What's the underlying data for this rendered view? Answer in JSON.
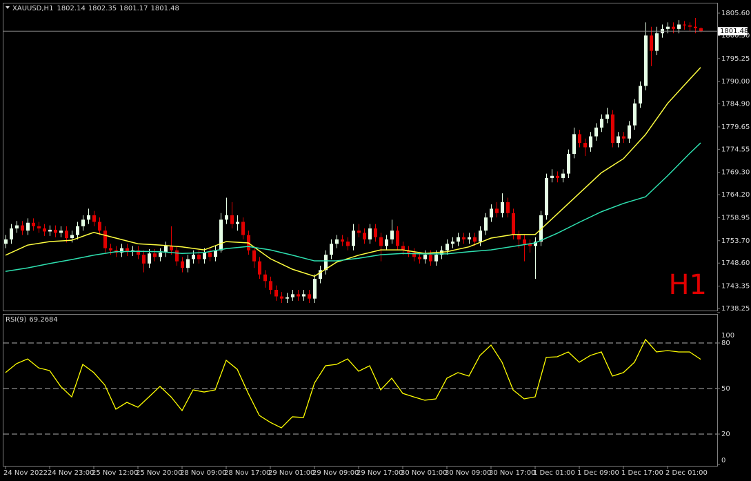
{
  "chart_data": [
    {
      "type": "candlestick",
      "title": "XAUUSD,H1",
      "annotation": "H1",
      "up_color": "#e6ffe6",
      "down_color": "#e00000",
      "categories": [
        "24 Nov 2022",
        null,
        null,
        null,
        null,
        null,
        null,
        null,
        "24 Nov 23:00",
        null,
        null,
        null,
        null,
        null,
        null,
        null,
        "25 Nov 12:00",
        null,
        null,
        null,
        null,
        null,
        null,
        null,
        "25 Nov 20:00",
        null,
        null,
        null,
        null,
        null,
        null,
        null,
        "28 Nov 09:00",
        null,
        null,
        null,
        null,
        null,
        null,
        null,
        "28 Nov 17:00",
        null,
        null,
        null,
        null,
        null,
        null,
        null,
        "29 Nov 01:00",
        null,
        null,
        null,
        null,
        null,
        null,
        null,
        "29 Nov 09:00",
        null,
        null,
        null,
        null,
        null,
        null,
        null,
        "29 Nov 17:00",
        null,
        null,
        null,
        null,
        null,
        null,
        null,
        "30 Nov 01:00",
        null,
        null,
        null,
        null,
        null,
        null,
        null,
        "30 Nov 09:00",
        null,
        null,
        null,
        null,
        null,
        null,
        null,
        "30 Nov 17:00",
        null,
        null,
        null,
        null,
        null,
        null,
        null,
        "1 Dec 01:00",
        null,
        null,
        null,
        null,
        null,
        null,
        null,
        "1 Dec 09:00",
        null,
        null,
        null,
        null,
        null,
        null,
        null,
        "1 Dec 17:00",
        null,
        null,
        null,
        null,
        null,
        null,
        null,
        "2 Dec 01:00",
        null,
        null,
        null,
        null,
        null,
        null
      ],
      "open": [
        1753.0,
        1754.0,
        1756.5,
        1757.2,
        1756.0,
        1757.8,
        1757.0,
        1756.5,
        1755.8,
        1756.2,
        1755.5,
        1756.0,
        1754.3,
        1755.0,
        1757.0,
        1758.5,
        1759.5,
        1758.0,
        1756.0,
        1752.0,
        1751.5,
        1751.0,
        1752.0,
        1751.2,
        1751.5,
        1750.5,
        1748.5,
        1750.8,
        1750.0,
        1751.0,
        1752.5,
        1751.5,
        1749.0,
        1747.5,
        1749.5,
        1750.5,
        1749.5,
        1751.0,
        1750.0,
        1751.5,
        1758.5,
        1759.5,
        1757.5,
        1758.0,
        1755.0,
        1751.5,
        1749.0,
        1746.0,
        1744.5,
        1742.5,
        1741.0,
        1740.5,
        1740.8,
        1741.5,
        1741.0,
        1741.5,
        1740.5,
        1745.0,
        1747.0,
        1750.5,
        1753.0,
        1754.0,
        1753.5,
        1752.5,
        1756.0,
        1755.5,
        1754.0,
        1756.5,
        1754.5,
        1752.5,
        1754.0,
        1756.0,
        1752.5,
        1751.5,
        1751.0,
        1750.0,
        1749.5,
        1750.5,
        1749.0,
        1750.5,
        1751.5,
        1753.0,
        1753.5,
        1754.5,
        1754.0,
        1754.5,
        1753.5,
        1756.0,
        1759.0,
        1761.0,
        1760.0,
        1762.5,
        1760.0,
        1755.0,
        1754.0,
        1753.0,
        1752.5,
        1753.5,
        1759.5,
        1768.0,
        1768.5,
        1768.0,
        1769.0,
        1773.5,
        1778.0,
        1776.0,
        1775.0,
        1777.5,
        1779.5,
        1781.5,
        1782.5,
        1776.0,
        1777.5,
        1777.0,
        1780.0,
        1785.0,
        1789.0,
        1800.5,
        1797.0,
        1801.0,
        1802.0,
        1802.5,
        1802.0,
        1803.0,
        1802.8,
        1802.5,
        1802.14
      ],
      "high": [
        1755.0,
        1757.5,
        1758.2,
        1758.2,
        1758.8,
        1758.8,
        1758.0,
        1757.5,
        1757.2,
        1757.2,
        1757.0,
        1757.0,
        1756.0,
        1758.0,
        1759.5,
        1761.0,
        1760.5,
        1759.0,
        1757.0,
        1753.0,
        1752.5,
        1753.0,
        1753.0,
        1752.5,
        1752.5,
        1751.5,
        1751.8,
        1751.8,
        1752.0,
        1753.5,
        1757.0,
        1752.5,
        1750.0,
        1750.5,
        1751.5,
        1751.5,
        1752.0,
        1752.0,
        1752.5,
        1760.0,
        1763.5,
        1762.5,
        1759.5,
        1759.0,
        1756.0,
        1752.5,
        1750.0,
        1747.0,
        1745.5,
        1743.5,
        1742.0,
        1741.8,
        1742.5,
        1742.5,
        1742.5,
        1742.5,
        1746.0,
        1748.0,
        1751.5,
        1754.0,
        1755.0,
        1755.0,
        1754.5,
        1757.5,
        1757.5,
        1756.5,
        1757.5,
        1757.5,
        1755.5,
        1755.0,
        1758.5,
        1757.0,
        1753.5,
        1752.5,
        1752.0,
        1751.0,
        1751.5,
        1751.5,
        1751.5,
        1752.5,
        1754.0,
        1754.5,
        1755.5,
        1755.5,
        1755.5,
        1755.5,
        1757.0,
        1760.0,
        1762.0,
        1762.5,
        1764.5,
        1763.5,
        1761.0,
        1756.0,
        1755.0,
        1754.0,
        1754.5,
        1760.5,
        1769.0,
        1770.0,
        1769.5,
        1770.0,
        1774.5,
        1779.5,
        1779.0,
        1777.0,
        1778.5,
        1780.5,
        1782.5,
        1784.0,
        1783.5,
        1778.5,
        1778.5,
        1781.0,
        1786.0,
        1790.0,
        1803.5,
        1802.5,
        1802.5,
        1803.0,
        1803.5,
        1803.5,
        1804.0,
        1803.8,
        1803.5,
        1804.5,
        1802.35
      ],
      "low": [
        1752.0,
        1753.0,
        1755.5,
        1755.0,
        1755.0,
        1756.0,
        1755.5,
        1754.8,
        1754.8,
        1754.5,
        1754.5,
        1753.3,
        1753.3,
        1754.0,
        1756.0,
        1757.5,
        1757.0,
        1755.0,
        1751.0,
        1750.5,
        1750.0,
        1750.0,
        1750.2,
        1750.2,
        1749.5,
        1746.5,
        1747.5,
        1749.0,
        1749.0,
        1750.0,
        1750.5,
        1748.0,
        1746.5,
        1746.5,
        1748.5,
        1748.5,
        1748.5,
        1749.0,
        1749.0,
        1751.0,
        1757.5,
        1756.5,
        1756.0,
        1754.0,
        1750.5,
        1747.5,
        1745.0,
        1743.0,
        1741.5,
        1740.0,
        1739.5,
        1739.5,
        1740.0,
        1740.0,
        1740.0,
        1739.5,
        1739.5,
        1744.0,
        1746.0,
        1749.5,
        1752.0,
        1752.5,
        1751.5,
        1751.5,
        1754.5,
        1753.0,
        1753.0,
        1753.5,
        1749.0,
        1751.5,
        1753.0,
        1751.5,
        1750.5,
        1750.0,
        1749.0,
        1748.5,
        1748.5,
        1748.0,
        1748.0,
        1749.5,
        1750.5,
        1752.0,
        1752.5,
        1753.0,
        1753.0,
        1752.5,
        1752.5,
        1755.0,
        1758.0,
        1759.0,
        1759.0,
        1759.0,
        1754.0,
        1752.0,
        1749.0,
        1751.0,
        1745.0,
        1752.5,
        1758.5,
        1767.0,
        1767.0,
        1767.0,
        1768.0,
        1772.5,
        1775.0,
        1773.0,
        1774.0,
        1776.5,
        1778.5,
        1780.5,
        1775.0,
        1775.0,
        1776.0,
        1776.0,
        1779.0,
        1784.0,
        1788.0,
        1793.5,
        1796.0,
        1800.0,
        1801.0,
        1801.0,
        1801.0,
        1801.8,
        1801.5,
        1801.0,
        1801.17
      ],
      "close": [
        1754.0,
        1756.5,
        1757.2,
        1756.0,
        1757.8,
        1757.0,
        1756.5,
        1755.8,
        1756.2,
        1755.5,
        1756.0,
        1754.3,
        1755.0,
        1757.0,
        1758.5,
        1759.5,
        1758.0,
        1756.0,
        1752.0,
        1751.5,
        1751.0,
        1752.0,
        1751.2,
        1751.5,
        1750.5,
        1748.5,
        1750.8,
        1750.0,
        1751.0,
        1752.5,
        1751.5,
        1749.0,
        1747.5,
        1749.5,
        1750.5,
        1749.5,
        1751.0,
        1750.0,
        1751.5,
        1758.5,
        1759.5,
        1757.5,
        1758.0,
        1755.0,
        1751.5,
        1749.0,
        1746.0,
        1744.5,
        1742.5,
        1741.0,
        1740.5,
        1740.8,
        1741.5,
        1741.0,
        1741.5,
        1740.5,
        1745.0,
        1747.0,
        1750.5,
        1753.0,
        1754.0,
        1753.5,
        1752.5,
        1756.0,
        1755.5,
        1754.0,
        1756.5,
        1754.5,
        1752.5,
        1754.0,
        1756.0,
        1752.5,
        1751.5,
        1751.0,
        1750.0,
        1749.5,
        1750.5,
        1749.0,
        1750.5,
        1751.5,
        1753.0,
        1753.5,
        1754.5,
        1754.0,
        1754.5,
        1753.5,
        1756.0,
        1759.0,
        1761.0,
        1760.0,
        1762.5,
        1760.0,
        1755.0,
        1754.0,
        1753.0,
        1752.5,
        1753.5,
        1759.5,
        1768.0,
        1768.5,
        1768.0,
        1769.0,
        1773.5,
        1778.0,
        1776.0,
        1775.0,
        1777.5,
        1779.5,
        1781.5,
        1782.5,
        1776.0,
        1777.5,
        1777.0,
        1780.0,
        1785.0,
        1789.0,
        1800.5,
        1797.0,
        1801.0,
        1802.0,
        1802.5,
        1802.0,
        1803.0,
        1802.8,
        1802.5,
        1802.14,
        1801.48
      ],
      "series": [
        {
          "color": "#ffff40",
          "x": [
            0,
            4,
            8,
            12,
            16,
            20,
            24,
            28,
            32,
            36,
            40,
            44,
            48,
            52,
            56,
            60,
            64,
            68,
            72,
            76,
            80,
            84,
            88,
            92,
            96,
            100,
            104,
            108,
            112,
            116,
            120,
            124,
            126
          ],
          "values": [
            1750.4,
            1752.7,
            1753.5,
            1753.8,
            1755.6,
            1754.3,
            1753.0,
            1752.7,
            1752.3,
            1751.6,
            1753.5,
            1753.2,
            1749.6,
            1747.2,
            1745.6,
            1748.8,
            1750.4,
            1751.6,
            1751.6,
            1750.8,
            1751.2,
            1752.3,
            1754.3,
            1755.1,
            1755.1,
            1759.8,
            1764.5,
            1769.2,
            1772.4,
            1777.9,
            1785.0,
            1790.5,
            1793.2
          ]
        },
        {
          "color": "#2ee0b0",
          "x": [
            0,
            4,
            8,
            12,
            16,
            20,
            24,
            28,
            32,
            36,
            40,
            44,
            48,
            52,
            56,
            60,
            64,
            68,
            72,
            76,
            80,
            84,
            88,
            92,
            96,
            100,
            104,
            108,
            112,
            116,
            120,
            124,
            126
          ],
          "values": [
            1746.7,
            1747.5,
            1748.5,
            1749.4,
            1750.4,
            1751.2,
            1751.3,
            1751.2,
            1750.8,
            1751.0,
            1751.9,
            1752.4,
            1751.6,
            1750.4,
            1749.1,
            1749.1,
            1749.7,
            1750.5,
            1750.8,
            1750.7,
            1750.7,
            1751.2,
            1751.6,
            1752.4,
            1753.2,
            1755.4,
            1757.9,
            1760.3,
            1762.2,
            1763.7,
            1768.5,
            1773.6,
            1776.0
          ]
        }
      ],
      "ylim": [
        1738.25,
        1805.6
      ],
      "yticks": [
        {
          "value": 1805.6,
          "label": "1805.60"
        },
        {
          "value": 1800.5,
          "label": "1800.50"
        },
        {
          "value": 1795.25,
          "label": "1795.25"
        },
        {
          "value": 1790.0,
          "label": "1790.00"
        },
        {
          "value": 1784.9,
          "label": "1784.90"
        },
        {
          "value": 1779.65,
          "label": "1779.65"
        },
        {
          "value": 1774.55,
          "label": "1774.55"
        },
        {
          "value": 1769.3,
          "label": "1769.30"
        },
        {
          "value": 1764.2,
          "label": "1764.20"
        },
        {
          "value": 1758.95,
          "label": "1758.95"
        },
        {
          "value": 1753.7,
          "label": "1753.70"
        },
        {
          "value": 1748.6,
          "label": "1748.60"
        },
        {
          "value": 1743.35,
          "label": "1743.35"
        },
        {
          "value": 1738.25,
          "label": "1738.25"
        }
      ]
    },
    {
      "type": "line",
      "title": "RSI(9)",
      "series": [
        {
          "color": "#ffff00",
          "x": [
            0,
            2,
            4,
            6,
            8,
            10,
            12,
            14,
            16,
            18,
            20,
            22,
            24,
            26,
            28,
            30,
            32,
            34,
            36,
            38,
            40,
            42,
            44,
            46,
            48,
            50,
            52,
            54,
            56,
            58,
            60,
            62,
            64,
            66,
            68,
            70,
            72,
            74,
            76,
            78,
            80,
            82,
            84,
            86,
            88,
            90,
            92,
            94,
            96,
            98,
            100,
            102,
            104,
            106,
            108,
            110,
            112,
            114,
            116,
            118,
            120,
            122,
            124,
            126
          ],
          "values": [
            60.5,
            66.4,
            69.5,
            63.6,
            61.8,
            51.4,
            44.5,
            65.9,
            60.5,
            52.3,
            36.4,
            40.9,
            37.7,
            44.5,
            51.4,
            44.5,
            35.5,
            49.1,
            47.7,
            49.1,
            68.6,
            62.7,
            46.8,
            32.3,
            27.7,
            24.1,
            31.4,
            30.9,
            53.6,
            65.0,
            65.9,
            69.5,
            61.4,
            65.0,
            49.1,
            56.8,
            46.8,
            44.5,
            42.3,
            43.2,
            56.8,
            60.5,
            58.2,
            71.8,
            78.6,
            67.3,
            49.1,
            43.2,
            44.5,
            70.5,
            70.9,
            74.1,
            67.3,
            71.8,
            74.1,
            58.2,
            60.5,
            67.3,
            82.3,
            74.1,
            75.0,
            74.1,
            74.1,
            69.2684
          ]
        }
      ],
      "ylim": [
        0,
        100
      ],
      "yticks": [
        100,
        80,
        50,
        20,
        0
      ],
      "levels": [
        20,
        50,
        80
      ]
    }
  ]
}
